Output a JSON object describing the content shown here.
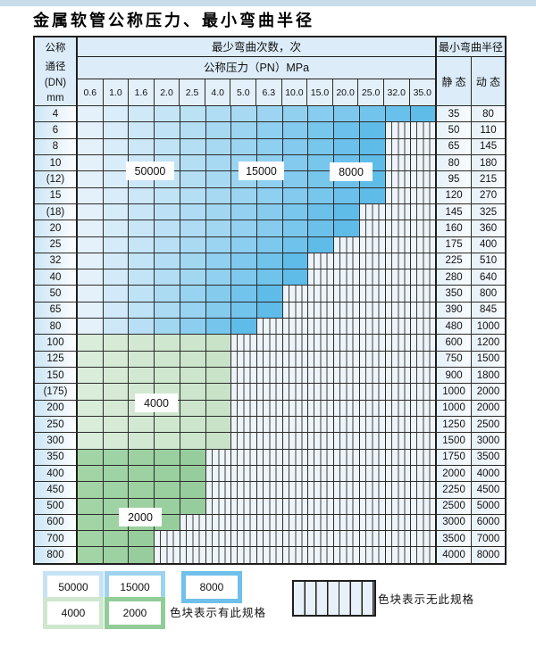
{
  "title": "金属软管公称压力、最小弯曲半径",
  "table": {
    "header": {
      "dn_lines": [
        "公称",
        "通径",
        "(DN)",
        "mm"
      ],
      "cycles_header": "最少弯曲次数，次",
      "pressure_header": "公称压力（PN）MPa",
      "radius_header": "最小弯曲半径",
      "static_label": "静 态",
      "dynamic_label": "动 态",
      "pressures": [
        "0.6",
        "1.0",
        "1.6",
        "2.0",
        "2.5",
        "4.0",
        "5.0",
        "6.3",
        "10.0",
        "15.0",
        "20.0",
        "25.0",
        "32.0",
        "35.0"
      ]
    },
    "rows": [
      {
        "dn": "4",
        "band": "blue",
        "colored": 14,
        "static": "35",
        "dynamic": "80"
      },
      {
        "dn": "6",
        "band": "blue",
        "colored": 12,
        "static": "50",
        "dynamic": "110"
      },
      {
        "dn": "8",
        "band": "blue",
        "colored": 12,
        "static": "65",
        "dynamic": "145"
      },
      {
        "dn": "10",
        "band": "blue",
        "colored": 12,
        "static": "80",
        "dynamic": "180"
      },
      {
        "dn": "(12)",
        "band": "blue",
        "colored": 12,
        "static": "95",
        "dynamic": "215"
      },
      {
        "dn": "15",
        "band": "blue",
        "colored": 12,
        "static": "120",
        "dynamic": "270"
      },
      {
        "dn": "(18)",
        "band": "blue",
        "colored": 11,
        "static": "145",
        "dynamic": "325"
      },
      {
        "dn": "20",
        "band": "blue",
        "colored": 11,
        "static": "160",
        "dynamic": "360"
      },
      {
        "dn": "25",
        "band": "blue",
        "colored": 10,
        "static": "175",
        "dynamic": "400"
      },
      {
        "dn": "32",
        "band": "blue",
        "colored": 9,
        "static": "225",
        "dynamic": "510"
      },
      {
        "dn": "40",
        "band": "blue",
        "colored": 9,
        "static": "280",
        "dynamic": "640"
      },
      {
        "dn": "50",
        "band": "blue",
        "colored": 8,
        "static": "350",
        "dynamic": "800"
      },
      {
        "dn": "65",
        "band": "blue",
        "colored": 8,
        "static": "390",
        "dynamic": "845"
      },
      {
        "dn": "80",
        "band": "blue",
        "colored": 7,
        "static": "480",
        "dynamic": "1000"
      },
      {
        "dn": "100",
        "band": "green_light",
        "colored": 6,
        "static": "600",
        "dynamic": "1200"
      },
      {
        "dn": "125",
        "band": "green_light",
        "colored": 6,
        "static": "750",
        "dynamic": "1500"
      },
      {
        "dn": "150",
        "band": "green_light",
        "colored": 6,
        "static": "900",
        "dynamic": "1800"
      },
      {
        "dn": "(175)",
        "band": "green_light",
        "colored": 6,
        "static": "1000",
        "dynamic": "2000"
      },
      {
        "dn": "200",
        "band": "green_light",
        "colored": 6,
        "static": "1000",
        "dynamic": "2000"
      },
      {
        "dn": "250",
        "band": "green_light",
        "colored": 6,
        "static": "1250",
        "dynamic": "2500"
      },
      {
        "dn": "300",
        "band": "green_light",
        "colored": 6,
        "static": "1500",
        "dynamic": "3000"
      },
      {
        "dn": "350",
        "band": "green_dark",
        "colored": 5,
        "static": "1750",
        "dynamic": "3500"
      },
      {
        "dn": "400",
        "band": "green_dark",
        "colored": 5,
        "static": "2000",
        "dynamic": "4000"
      },
      {
        "dn": "450",
        "band": "green_dark",
        "colored": 5,
        "static": "2250",
        "dynamic": "4500"
      },
      {
        "dn": "500",
        "band": "green_dark",
        "colored": 5,
        "static": "2500",
        "dynamic": "5000"
      },
      {
        "dn": "600",
        "band": "green_dark",
        "colored": 4,
        "static": "3000",
        "dynamic": "6000"
      },
      {
        "dn": "700",
        "band": "green_dark",
        "colored": 3,
        "static": "3500",
        "dynamic": "7000"
      },
      {
        "dn": "800",
        "band": "green_dark",
        "colored": 3,
        "static": "4000",
        "dynamic": "8000"
      }
    ],
    "cycle_labels": [
      "50000",
      "15000",
      "8000",
      "4000",
      "2000"
    ]
  },
  "legend": {
    "swatches": [
      {
        "label": "50000",
        "color": "#c5e3f5"
      },
      {
        "label": "15000",
        "color": "#9ed3f0"
      },
      {
        "label": "8000",
        "color": "#6fc0ea"
      },
      {
        "label": "4000",
        "color": "#cfe7cf"
      },
      {
        "label": "2000",
        "color": "#92cc98"
      }
    ],
    "has_spec_text": "色块表示有此规格",
    "no_spec_text": "色块表示无此规格"
  },
  "colors": {
    "grid": "#2b2b2b",
    "header_bg": "#dcecf8",
    "no_spec_bg": "#edf4fa",
    "bands": {
      "blue": {
        "start": "#e4f1fb",
        "end": "#5fbce9"
      },
      "green_light": {
        "start": "#daecda",
        "end": "#c8e3c8"
      },
      "green_dark": {
        "start": "#a2d4a6",
        "end": "#97cd9c"
      }
    }
  },
  "chart_data": {
    "type": "table",
    "title": "金属软管公称压力、最小弯曲半径",
    "pressure_columns_PN_MPa": [
      0.6,
      1.0,
      1.6,
      2.0,
      2.5,
      4.0,
      5.0,
      6.3,
      10.0,
      15.0,
      20.0,
      25.0,
      32.0,
      35.0
    ],
    "cycle_band_values": [
      50000,
      15000,
      8000,
      4000,
      2000
    ],
    "legend_meaning": {
      "colored": "色块表示有此规格",
      "striped": "色块表示无此规格"
    },
    "rows": [
      {
        "dn": "4",
        "max_pn": 35.0,
        "static_radius": 35,
        "dynamic_radius": 80
      },
      {
        "dn": "6",
        "max_pn": 25.0,
        "static_radius": 50,
        "dynamic_radius": 110
      },
      {
        "dn": "8",
        "max_pn": 25.0,
        "static_radius": 65,
        "dynamic_radius": 145
      },
      {
        "dn": "10",
        "max_pn": 25.0,
        "static_radius": 80,
        "dynamic_radius": 180
      },
      {
        "dn": "(12)",
        "max_pn": 25.0,
        "static_radius": 95,
        "dynamic_radius": 215
      },
      {
        "dn": "15",
        "max_pn": 25.0,
        "static_radius": 120,
        "dynamic_radius": 270
      },
      {
        "dn": "(18)",
        "max_pn": 20.0,
        "static_radius": 145,
        "dynamic_radius": 325
      },
      {
        "dn": "20",
        "max_pn": 20.0,
        "static_radius": 160,
        "dynamic_radius": 360
      },
      {
        "dn": "25",
        "max_pn": 15.0,
        "static_radius": 175,
        "dynamic_radius": 400
      },
      {
        "dn": "32",
        "max_pn": 10.0,
        "static_radius": 225,
        "dynamic_radius": 510
      },
      {
        "dn": "40",
        "max_pn": 10.0,
        "static_radius": 280,
        "dynamic_radius": 640
      },
      {
        "dn": "50",
        "max_pn": 6.3,
        "static_radius": 350,
        "dynamic_radius": 800
      },
      {
        "dn": "65",
        "max_pn": 6.3,
        "static_radius": 390,
        "dynamic_radius": 845
      },
      {
        "dn": "80",
        "max_pn": 5.0,
        "static_radius": 480,
        "dynamic_radius": 1000
      },
      {
        "dn": "100",
        "max_pn": 4.0,
        "static_radius": 600,
        "dynamic_radius": 1200
      },
      {
        "dn": "125",
        "max_pn": 4.0,
        "static_radius": 750,
        "dynamic_radius": 1500
      },
      {
        "dn": "150",
        "max_pn": 4.0,
        "static_radius": 900,
        "dynamic_radius": 1800
      },
      {
        "dn": "(175)",
        "max_pn": 4.0,
        "static_radius": 1000,
        "dynamic_radius": 2000
      },
      {
        "dn": "200",
        "max_pn": 4.0,
        "static_radius": 1000,
        "dynamic_radius": 2000
      },
      {
        "dn": "250",
        "max_pn": 4.0,
        "static_radius": 1250,
        "dynamic_radius": 2500
      },
      {
        "dn": "300",
        "max_pn": 4.0,
        "static_radius": 1500,
        "dynamic_radius": 3000
      },
      {
        "dn": "350",
        "max_pn": 2.5,
        "static_radius": 1750,
        "dynamic_radius": 3500
      },
      {
        "dn": "400",
        "max_pn": 2.5,
        "static_radius": 2000,
        "dynamic_radius": 4000
      },
      {
        "dn": "450",
        "max_pn": 2.5,
        "static_radius": 2250,
        "dynamic_radius": 4500
      },
      {
        "dn": "500",
        "max_pn": 2.5,
        "static_radius": 2500,
        "dynamic_radius": 5000
      },
      {
        "dn": "600",
        "max_pn": 2.0,
        "static_radius": 3000,
        "dynamic_radius": 6000
      },
      {
        "dn": "700",
        "max_pn": 1.6,
        "static_radius": 3500,
        "dynamic_radius": 7000
      },
      {
        "dn": "800",
        "max_pn": 1.6,
        "static_radius": 4000,
        "dynamic_radius": 8000
      }
    ]
  }
}
